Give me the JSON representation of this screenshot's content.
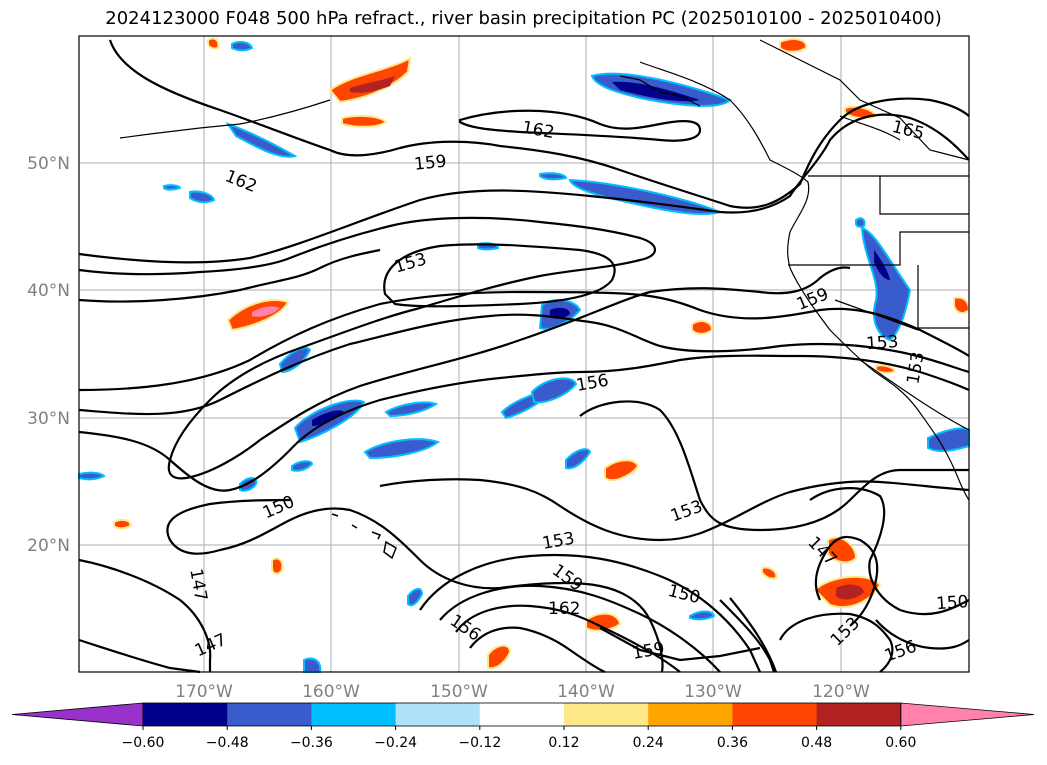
{
  "title": "2024123000 F048 500 hPa refract., river basin precipitation PC (2025010100 - 2025010400)",
  "lat_labels": [
    "50°N",
    "40°N",
    "30°N",
    "20°N"
  ],
  "lon_labels": [
    "170°W",
    "160°W",
    "150°W",
    "140°W",
    "130°W",
    "120°W"
  ],
  "contour_labels": [
    "162",
    "159",
    "162",
    "165",
    "153",
    "159",
    "156",
    "153",
    "153",
    "150",
    "147",
    "147",
    "153",
    "153",
    "159",
    "162",
    "156",
    "150",
    "159",
    "147",
    "153",
    "150",
    "156"
  ],
  "colorbar": {
    "ticks": [
      "−0.60",
      "−0.48",
      "−0.36",
      "−0.24",
      "−0.12",
      "0.12",
      "0.24",
      "0.36",
      "0.48",
      "0.60"
    ],
    "colors": [
      "#9932cc",
      "#00008b",
      "#3a5bcc",
      "#00bfff",
      "#afe3fa",
      "#ffffff",
      "#ffe88a",
      "#ffa500",
      "#ff4500",
      "#b22222",
      "#ff82ab"
    ]
  }
}
